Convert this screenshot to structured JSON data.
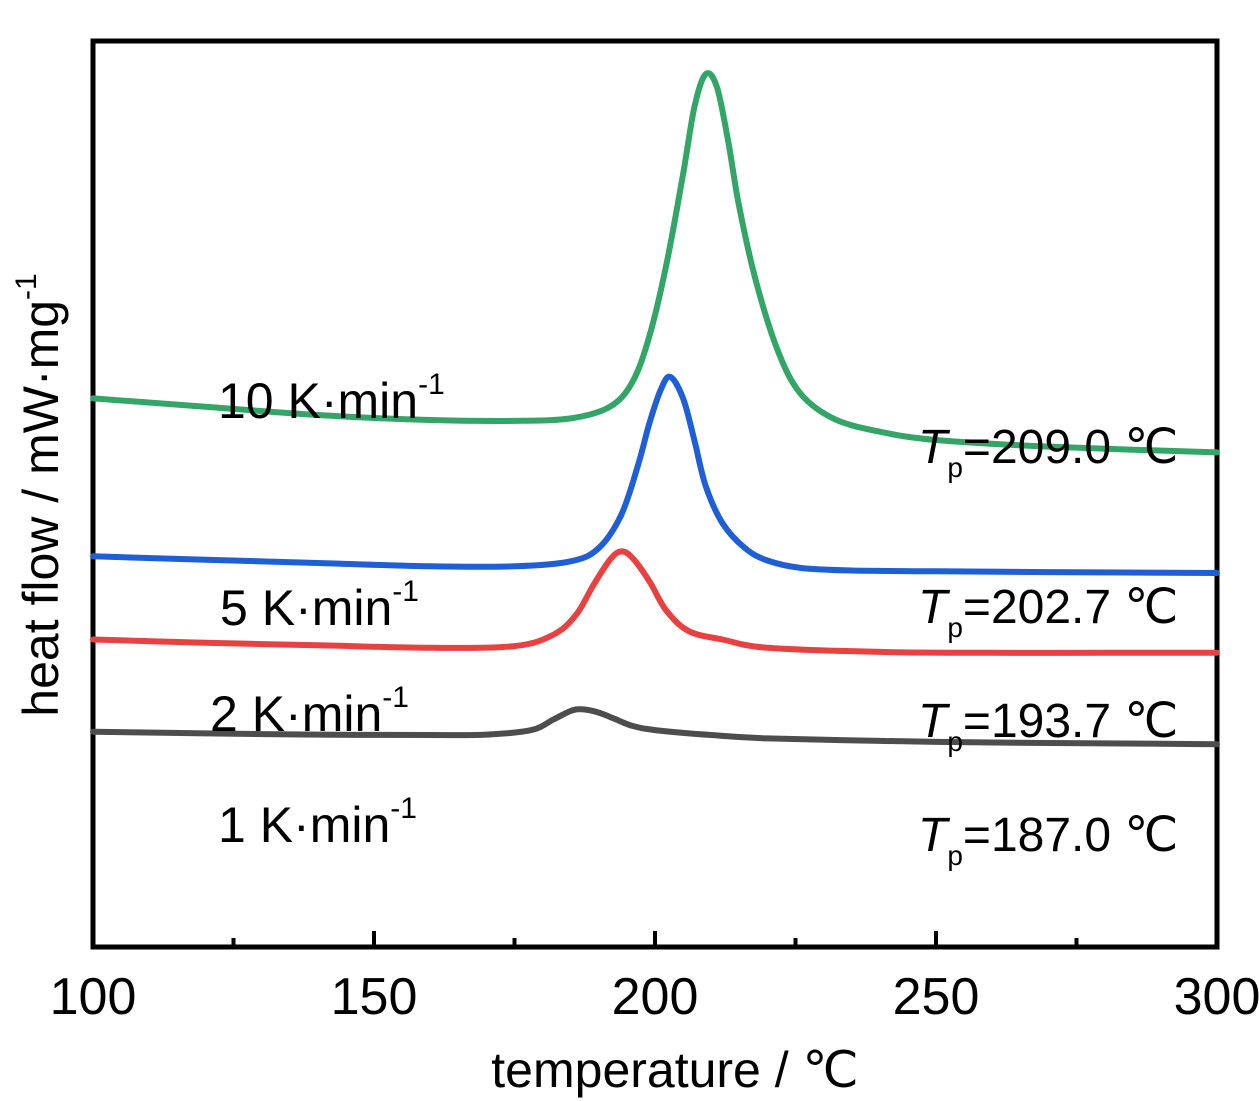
{
  "chart_data": {
    "type": "line",
    "xlabel": "temperature / ℃",
    "ylabel": "heat flow / mW·mg",
    "ylabel_sup": "-1",
    "xlim": [
      100,
      300
    ],
    "xticks": [
      100,
      150,
      200,
      250,
      300
    ],
    "xticks_minor": [
      125,
      175,
      225,
      275
    ],
    "y_tick_labels": false,
    "grid": false,
    "series": [
      {
        "name": "1 K·min",
        "name_sup": "-1",
        "color": "#4d4d4d",
        "peak_label": "=187.0 ℃",
        "peak_T": 187.0,
        "x": [
          100,
          120,
          140,
          160,
          170,
          178,
          182,
          185,
          187,
          190,
          193,
          196,
          200,
          210,
          220,
          240,
          260,
          280,
          300
        ],
        "y": [
          0.9,
          0.7,
          0.55,
          0.5,
          0.55,
          1.1,
          2.4,
          3.4,
          3.6,
          3.2,
          2.4,
          1.6,
          1.1,
          0.5,
          0.1,
          -0.2,
          -0.4,
          -0.5,
          -0.6
        ]
      },
      {
        "name": "2 K·min",
        "name_sup": "-1",
        "color": "#e84141",
        "peak_label": "=193.7 ℃",
        "peak_T": 193.7,
        "x": [
          100,
          120,
          140,
          160,
          175,
          182,
          186,
          189,
          192,
          194,
          196,
          199,
          202,
          206,
          212,
          220,
          240,
          260,
          280,
          300
        ],
        "y": [
          12.0,
          11.6,
          11.3,
          11.0,
          11.2,
          12.6,
          15.0,
          18.5,
          21.6,
          22.6,
          21.8,
          19.0,
          15.5,
          13.0,
          12.0,
          11.0,
          10.5,
          10.4,
          10.4,
          10.4
        ]
      },
      {
        "name": "5 K·min",
        "name_sup": "-1",
        "color": "#1f5fd6",
        "peak_label": "=202.7 ℃",
        "peak_T": 202.7,
        "x": [
          100,
          120,
          140,
          160,
          175,
          185,
          190,
          194,
          197,
          199,
          201,
          202.7,
          205,
          207,
          209,
          212,
          216,
          220,
          226,
          235,
          250,
          270,
          300
        ],
        "y": [
          22.0,
          21.6,
          21.2,
          20.8,
          20.8,
          21.4,
          23.0,
          27.0,
          33.0,
          38.0,
          42.0,
          43.6,
          41.0,
          36.0,
          30.5,
          26.0,
          23.0,
          21.5,
          20.6,
          20.3,
          20.2,
          20.1,
          20.0
        ]
      },
      {
        "name": "10 K·min",
        "name_sup": "-1",
        "color": "#33a566",
        "peak_label": "=209.0 ℃",
        "peak_T": 209.0,
        "x": [
          100,
          120,
          140,
          160,
          175,
          185,
          192,
          196,
          199,
          202,
          205,
          207,
          209,
          211,
          213,
          215,
          218,
          222,
          226,
          232,
          240,
          250,
          270,
          300
        ],
        "y": [
          41.0,
          40.0,
          39.0,
          38.4,
          38.3,
          38.6,
          40.0,
          43.0,
          48.5,
          57.0,
          68.0,
          76.0,
          80.0,
          78.5,
          72.0,
          64.0,
          55.0,
          46.5,
          41.5,
          38.5,
          37.0,
          36.0,
          35.2,
          34.5
        ]
      }
    ]
  }
}
